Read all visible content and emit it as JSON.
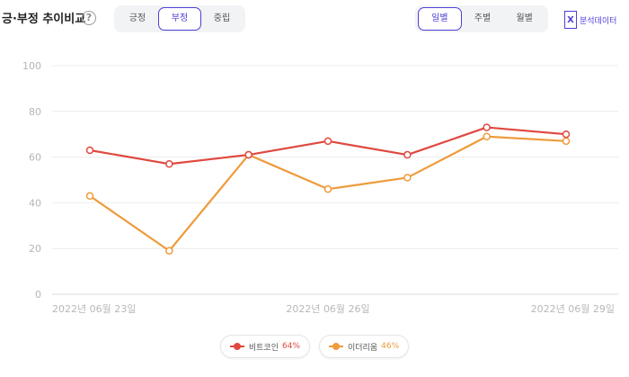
{
  "header": {
    "title": "긍·부정 추이비교",
    "help_icon": "?",
    "sentiment_tabs": [
      {
        "label": "긍정",
        "active": false
      },
      {
        "label": "부정",
        "active": true
      },
      {
        "label": "중립",
        "active": false
      }
    ],
    "period_tabs": [
      {
        "label": "일별",
        "active": true
      },
      {
        "label": "주별",
        "active": false
      },
      {
        "label": "월별",
        "active": false
      }
    ],
    "analysis_data": {
      "icon": "excel-icon",
      "icon_glyph": "X",
      "label": "분석데이터"
    }
  },
  "colors": {
    "accent": "#4d3fd6",
    "bitcoin": "#e0483f",
    "ethereum": "#ee9b3b",
    "grid": "#e9e9e9"
  },
  "chart_data": {
    "type": "line",
    "x": [
      "2022-06-23",
      "2022-06-24",
      "2022-06-25",
      "2022-06-26",
      "2022-06-27",
      "2022-06-28",
      "2022-06-29"
    ],
    "x_tick_labels": [
      "2022년 06월 23일",
      "2022년 06월 26일",
      "2022년 06월 29일"
    ],
    "x_tick_positions": [
      "2022-06-23",
      "2022-06-26",
      "2022-06-29"
    ],
    "ylim": [
      0,
      100
    ],
    "yticks": [
      0,
      20,
      40,
      60,
      80,
      100
    ],
    "grid": true,
    "legend_position": "bottom-center",
    "series": [
      {
        "name": "비트코인",
        "percent": "64%",
        "color": "#e0483f",
        "values": [
          63,
          57,
          61,
          67,
          61,
          73,
          70
        ]
      },
      {
        "name": "이더리움",
        "percent": "46%",
        "color": "#ee9b3b",
        "values": [
          43,
          19,
          61,
          46,
          51,
          69,
          67
        ]
      }
    ]
  },
  "legend": [
    {
      "name": "비트코인",
      "percent": "64%"
    },
    {
      "name": "이더리움",
      "percent": "46%"
    }
  ]
}
